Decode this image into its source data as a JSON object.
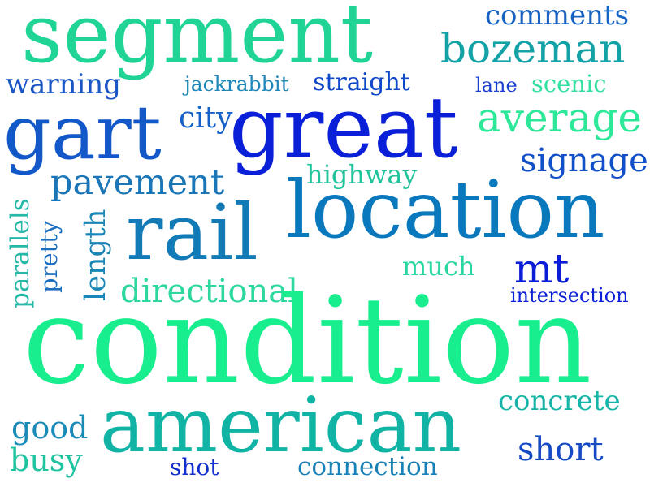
{
  "words": {
    "segment": {
      "text": "segment",
      "color": "#1fd495"
    },
    "comments": {
      "text": "comments",
      "color": "#1763c2"
    },
    "bozeman": {
      "text": "bozeman",
      "color": "#13a2a5"
    },
    "warning": {
      "text": "warning",
      "color": "#1a55c4"
    },
    "jackrabbit": {
      "text": "jackrabbit",
      "color": "#1e86b8"
    },
    "straight": {
      "text": "straight",
      "color": "#0f47c9"
    },
    "lane": {
      "text": "lane",
      "color": "#1a3fd0"
    },
    "scenic": {
      "text": "scenic",
      "color": "#34e0a0"
    },
    "gart": {
      "text": "gart",
      "color": "#1258c8"
    },
    "city": {
      "text": "city",
      "color": "#1660c6"
    },
    "great": {
      "text": "great",
      "color": "#0a1fd8"
    },
    "average": {
      "text": "average",
      "color": "#2ee89a"
    },
    "signage": {
      "text": "signage",
      "color": "#1150c8"
    },
    "pavement": {
      "text": "pavement",
      "color": "#1a76b6"
    },
    "highway": {
      "text": "highway",
      "color": "#20c39a"
    },
    "location": {
      "text": "location",
      "color": "#0a78bd"
    },
    "rail": {
      "text": "rail",
      "color": "#127ab7"
    },
    "parallels": {
      "text": "parallels",
      "color": "#27b9a8"
    },
    "pretty": {
      "text": "pretty",
      "color": "#1e6ec0"
    },
    "length": {
      "text": "length",
      "color": "#1a86b6"
    },
    "much": {
      "text": "much",
      "color": "#2ad7a2"
    },
    "mt": {
      "text": "mt",
      "color": "#0b1ed6"
    },
    "directional": {
      "text": "directional",
      "color": "#2dd79d"
    },
    "intersection": {
      "text": "intersection",
      "color": "#0b1fd6"
    },
    "condition": {
      "text": "condition",
      "color": "#19ee8f"
    },
    "concrete": {
      "text": "concrete",
      "color": "#15b4a7"
    },
    "good": {
      "text": "good",
      "color": "#1a8ab7"
    },
    "american": {
      "text": "american",
      "color": "#11b3a5"
    },
    "short": {
      "text": "short",
      "color": "#1549c6"
    },
    "busy": {
      "text": "busy",
      "color": "#1ec39f"
    },
    "shot": {
      "text": "shot",
      "color": "#112ecf"
    },
    "connection": {
      "text": "connection",
      "color": "#1881b7"
    }
  }
}
